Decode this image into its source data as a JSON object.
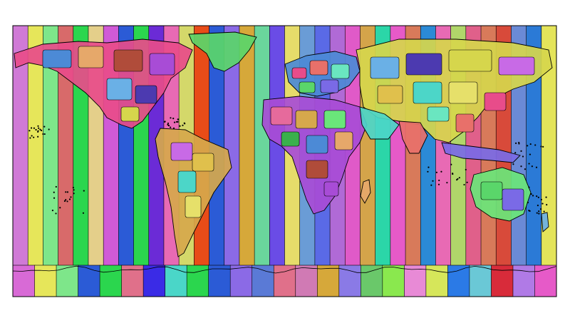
{
  "map": {
    "kind": "world time zones",
    "projection": "equirectangular",
    "background": "#ffffff",
    "stroke": "#000000",
    "band_colors": [
      "#d07ad6",
      "#e6e65a",
      "#7ee68a",
      "#d86a6a",
      "#2bd64e",
      "#e4cf8a",
      "#d05ad6",
      "#2b5bd6",
      "#2bd64e",
      "#6b2bd6",
      "#e86ab4",
      "#d4d86a",
      "#e84c18",
      "#2b5bd6",
      "#8b6ae6",
      "#d6a83a",
      "#6ad69c",
      "#6a4ce6",
      "#e6dc6a",
      "#6a9cd6",
      "#5a6ae6",
      "#b06ad6",
      "#e05ac8",
      "#d4a44a",
      "#2bd6a8",
      "#e65ac8",
      "#d87a5a",
      "#2b8ad6",
      "#e86ab4",
      "#b0d66a",
      "#e0608a",
      "#d87a5a",
      "#d84a3a",
      "#6a8ad6",
      "#2b7ad6",
      "#e4e45a"
    ],
    "bottom_colors": [
      "#d86ad6",
      "#e6e65a",
      "#7ee68a",
      "#2b5bd6",
      "#2bd64e",
      "#e0708a",
      "#3a2be6",
      "#4ad6c8",
      "#2bd64e",
      "#2b5bd6",
      "#8b6ae6",
      "#5a7ad6",
      "#e0708a",
      "#d07ab4",
      "#d6a83a",
      "#8a7ae6",
      "#6ac86a",
      "#8ae84e",
      "#e88ad6",
      "#d6e65a",
      "#2b7ae6",
      "#6ac8d6",
      "#d82b3a",
      "#b07ae6",
      "#e65ac8"
    ],
    "country_palette": [
      "#e84c8a",
      "#5ad66a",
      "#d6a84c",
      "#4c8ad6",
      "#a84cd6",
      "#d6d64c",
      "#4cd6c8",
      "#e8706a",
      "#7a6ae6",
      "#6ae67a",
      "#e6a86a",
      "#6ab0e6",
      "#c86ae6",
      "#e6e06a",
      "#6ae6c0",
      "#e66a9c",
      "#3ab04c",
      "#b04c3a",
      "#4c3ab0",
      "#e0c04c"
    ]
  }
}
